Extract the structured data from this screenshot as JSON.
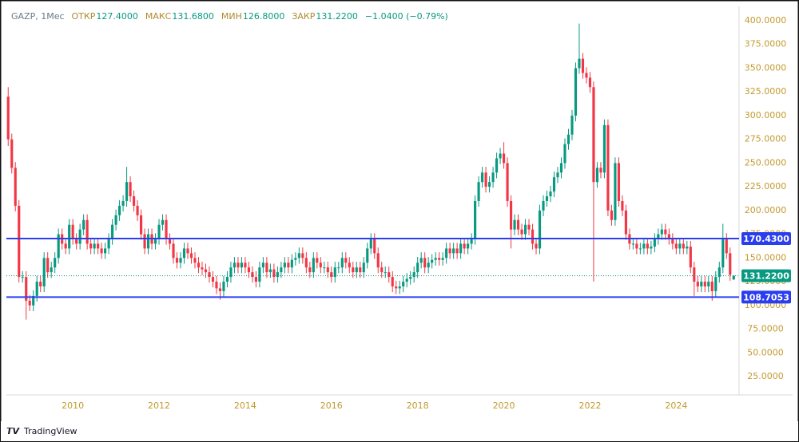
{
  "chart_data": {
    "type": "candlestick",
    "title": "GAZP, 1Мес",
    "legend_fields": [
      {
        "label": "ОТКР",
        "value": "127.4000"
      },
      {
        "label": "МАКС",
        "value": "131.6800"
      },
      {
        "label": "МИН",
        "value": "126.8000"
      },
      {
        "label": "ЗАКР",
        "value": "131.2200"
      }
    ],
    "change": "−1.0400 (−0.79%)",
    "watermark": "TradingView",
    "up_color": "#089981",
    "down_color": "#f23645",
    "ylim": [
      5.65,
      409.25
    ],
    "yticks": [
      {
        "value": 25,
        "label": "25.0000"
      },
      {
        "value": 50,
        "label": "50.0000"
      },
      {
        "value": 75,
        "label": "75.0000"
      },
      {
        "value": 100,
        "label": "100.0000"
      },
      {
        "value": 125,
        "label": "125.0000"
      },
      {
        "value": 150,
        "label": "150.0000"
      },
      {
        "value": 175,
        "label": "175.0000"
      },
      {
        "value": 200,
        "label": "200.0000"
      },
      {
        "value": 225,
        "label": "225.0000"
      },
      {
        "value": 250,
        "label": "250.0000"
      },
      {
        "value": 275,
        "label": "275.0000"
      },
      {
        "value": 300,
        "label": "300.0000"
      },
      {
        "value": 325,
        "label": "325.0000"
      },
      {
        "value": 350,
        "label": "350.0000"
      },
      {
        "value": 375,
        "label": "375.0000"
      },
      {
        "value": 400,
        "label": "400.0000"
      }
    ],
    "levels": [
      {
        "value": 170.43,
        "label": "170.4300",
        "color": "#2a3ef0"
      },
      {
        "value": 108.7053,
        "label": "108.7053",
        "color": "#2a3ef0"
      }
    ],
    "last_price": {
      "value": 131.22,
      "label": "131.2200",
      "color": "#089981"
    },
    "categories": [
      null,
      null,
      null,
      null,
      null,
      null,
      null,
      null,
      null,
      null,
      null,
      null,
      null,
      null,
      null,
      null,
      null,
      null,
      "2010",
      null,
      null,
      null,
      null,
      null,
      null,
      null,
      null,
      null,
      null,
      null,
      null,
      null,
      null,
      null,
      null,
      null,
      null,
      null,
      null,
      null,
      null,
      null,
      "2012",
      null,
      null,
      null,
      null,
      null,
      null,
      null,
      null,
      null,
      null,
      null,
      null,
      null,
      null,
      null,
      null,
      null,
      null,
      null,
      null,
      null,
      null,
      null,
      "2014",
      null,
      null,
      null,
      null,
      null,
      null,
      null,
      null,
      null,
      null,
      null,
      null,
      null,
      null,
      null,
      null,
      null,
      null,
      null,
      null,
      null,
      null,
      null,
      "2016",
      null,
      null,
      null,
      null,
      null,
      null,
      null,
      null,
      null,
      null,
      null,
      null,
      null,
      null,
      null,
      null,
      null,
      null,
      null,
      null,
      null,
      null,
      null,
      "2018",
      null,
      null,
      null,
      null,
      null,
      null,
      null,
      null,
      null,
      null,
      null,
      null,
      null,
      null,
      null,
      null,
      null,
      null,
      null,
      null,
      null,
      null,
      null,
      "2020",
      null,
      null,
      null,
      null,
      null,
      null,
      null,
      null,
      null,
      null,
      null,
      null,
      null,
      null,
      null,
      null,
      null,
      null,
      null,
      null,
      null,
      null,
      null,
      "2022",
      null,
      null,
      null,
      null,
      null,
      null,
      null,
      null,
      null,
      null,
      null,
      null,
      null,
      null,
      null,
      null,
      null,
      null,
      null,
      null,
      null,
      null,
      null,
      "2024",
      null,
      null,
      null,
      null,
      null,
      null,
      null,
      null,
      null,
      null,
      null,
      null,
      null,
      null,
      null,
      null
    ],
    "open": [
      320,
      275,
      245,
      205,
      130,
      130,
      105,
      100,
      110,
      125,
      120,
      150,
      135,
      140,
      150,
      175,
      165,
      160,
      185,
      170,
      165,
      180,
      190,
      165,
      160,
      165,
      160,
      155,
      160,
      170,
      185,
      195,
      205,
      210,
      230,
      215,
      205,
      195,
      175,
      160,
      175,
      165,
      170,
      185,
      190,
      170,
      165,
      150,
      145,
      150,
      160,
      155,
      150,
      145,
      140,
      138,
      135,
      130,
      125,
      118,
      115,
      125,
      130,
      140,
      145,
      140,
      145,
      140,
      135,
      130,
      125,
      140,
      145,
      135,
      138,
      130,
      135,
      140,
      145,
      140,
      148,
      150,
      155,
      150,
      140,
      135,
      150,
      145,
      140,
      140,
      135,
      130,
      140,
      140,
      150,
      145,
      140,
      135,
      140,
      135,
      145,
      160,
      170,
      155,
      140,
      135,
      135,
      130,
      120,
      118,
      120,
      125,
      128,
      130,
      135,
      145,
      150,
      140,
      145,
      148,
      150,
      148,
      150,
      160,
      155,
      160,
      155,
      165,
      160,
      165,
      170,
      210,
      230,
      240,
      225,
      230,
      240,
      255,
      260,
      250,
      210,
      180,
      190,
      180,
      175,
      185,
      180,
      165,
      160,
      200,
      210,
      215,
      220,
      235,
      240,
      250,
      270,
      280,
      300,
      350,
      360,
      345,
      340,
      330,
      230,
      245,
      240,
      290,
      200,
      190,
      250,
      210,
      200,
      175,
      165,
      165,
      160,
      160,
      165,
      160,
      162,
      170,
      175,
      180,
      175,
      170,
      165,
      160,
      165,
      160,
      162,
      140,
      125,
      120,
      125,
      120,
      125,
      115,
      130,
      140,
      170,
      155,
      127.4
    ],
    "high": [
      330,
      281,
      251,
      211,
      136,
      136,
      111,
      116,
      131,
      131,
      156,
      156,
      146,
      156,
      181,
      181,
      171,
      191,
      191,
      176,
      186,
      196,
      196,
      171,
      171,
      171,
      166,
      166,
      176,
      191,
      201,
      211,
      216,
      246,
      236,
      221,
      211,
      201,
      181,
      181,
      181,
      176,
      191,
      196,
      196,
      176,
      171,
      156,
      156,
      166,
      166,
      161,
      156,
      151,
      146,
      144,
      141,
      136,
      131,
      124,
      131,
      136,
      146,
      151,
      151,
      151,
      151,
      146,
      141,
      136,
      146,
      151,
      151,
      144,
      144,
      141,
      146,
      151,
      151,
      154,
      156,
      161,
      161,
      156,
      146,
      156,
      156,
      151,
      146,
      146,
      141,
      146,
      146,
      156,
      156,
      151,
      146,
      146,
      146,
      151,
      166,
      176,
      176,
      161,
      146,
      141,
      141,
      136,
      126,
      126,
      131,
      134,
      136,
      141,
      151,
      156,
      156,
      151,
      154,
      156,
      156,
      156,
      166,
      166,
      166,
      166,
      171,
      171,
      171,
      176,
      216,
      236,
      246,
      246,
      236,
      246,
      261,
      266,
      272,
      256,
      216,
      196,
      196,
      186,
      191,
      191,
      186,
      171,
      206,
      216,
      221,
      226,
      241,
      246,
      256,
      276,
      286,
      306,
      356,
      397,
      366,
      351,
      346,
      336,
      251,
      251,
      296,
      296,
      206,
      256,
      256,
      216,
      206,
      181,
      171,
      171,
      166,
      171,
      171,
      168,
      176,
      181,
      186,
      186,
      181,
      176,
      171,
      171,
      171,
      168,
      168,
      146,
      131,
      131,
      131,
      131,
      131,
      136,
      146,
      186,
      176,
      161,
      131.68
    ],
    "low": [
      268,
      239,
      199,
      124,
      124,
      85,
      94,
      94,
      104,
      114,
      114,
      129,
      129,
      134,
      144,
      159,
      154,
      154,
      164,
      159,
      159,
      174,
      159,
      154,
      154,
      154,
      149,
      149,
      154,
      164,
      179,
      189,
      199,
      204,
      209,
      199,
      189,
      169,
      154,
      154,
      159,
      159,
      164,
      179,
      164,
      159,
      144,
      139,
      139,
      144,
      149,
      144,
      139,
      134,
      132,
      129,
      124,
      119,
      112,
      106,
      109,
      119,
      124,
      134,
      134,
      134,
      134,
      129,
      124,
      119,
      119,
      134,
      129,
      129,
      124,
      124,
      129,
      134,
      134,
      134,
      142,
      144,
      144,
      134,
      129,
      129,
      139,
      134,
      134,
      129,
      124,
      124,
      134,
      134,
      139,
      134,
      129,
      129,
      129,
      129,
      139,
      154,
      149,
      134,
      129,
      129,
      124,
      114,
      112,
      112,
      114,
      119,
      122,
      124,
      129,
      139,
      134,
      134,
      139,
      142,
      142,
      142,
      144,
      149,
      149,
      149,
      149,
      154,
      154,
      159,
      164,
      204,
      224,
      219,
      219,
      224,
      234,
      249,
      244,
      204,
      160,
      174,
      174,
      169,
      169,
      174,
      159,
      154,
      154,
      194,
      204,
      209,
      214,
      229,
      234,
      244,
      264,
      274,
      294,
      344,
      339,
      334,
      324,
      125,
      224,
      234,
      234,
      194,
      184,
      184,
      204,
      194,
      169,
      159,
      159,
      154,
      154,
      154,
      154,
      154,
      156,
      164,
      169,
      169,
      164,
      159,
      154,
      154,
      154,
      154,
      134,
      110,
      114,
      114,
      114,
      114,
      105,
      109,
      124,
      134,
      149,
      126,
      126.8
    ],
    "close": [
      275,
      245,
      205,
      130,
      130,
      105,
      100,
      110,
      125,
      120,
      150,
      135,
      140,
      150,
      175,
      165,
      160,
      185,
      170,
      165,
      180,
      190,
      165,
      160,
      165,
      160,
      155,
      160,
      170,
      185,
      195,
      205,
      210,
      230,
      215,
      205,
      195,
      175,
      160,
      175,
      165,
      170,
      185,
      190,
      170,
      165,
      150,
      145,
      150,
      160,
      155,
      150,
      145,
      140,
      138,
      135,
      130,
      125,
      118,
      115,
      125,
      130,
      140,
      145,
      140,
      145,
      140,
      135,
      130,
      125,
      140,
      145,
      135,
      138,
      130,
      135,
      140,
      145,
      140,
      148,
      150,
      155,
      150,
      140,
      135,
      150,
      145,
      140,
      140,
      135,
      130,
      140,
      140,
      150,
      145,
      140,
      135,
      140,
      135,
      145,
      160,
      170,
      155,
      140,
      135,
      135,
      130,
      120,
      118,
      120,
      125,
      128,
      130,
      135,
      145,
      150,
      140,
      145,
      148,
      150,
      148,
      150,
      160,
      155,
      160,
      155,
      165,
      160,
      165,
      170,
      210,
      230,
      240,
      225,
      230,
      240,
      255,
      260,
      250,
      210,
      180,
      190,
      180,
      175,
      185,
      180,
      165,
      160,
      200,
      210,
      215,
      220,
      235,
      240,
      250,
      270,
      280,
      300,
      350,
      360,
      345,
      340,
      330,
      230,
      245,
      240,
      290,
      200,
      190,
      250,
      210,
      200,
      175,
      165,
      165,
      160,
      160,
      165,
      160,
      162,
      170,
      175,
      180,
      175,
      170,
      165,
      160,
      165,
      160,
      162,
      140,
      125,
      120,
      125,
      120,
      125,
      115,
      130,
      140,
      170,
      155,
      132.26,
      131.22
    ]
  }
}
